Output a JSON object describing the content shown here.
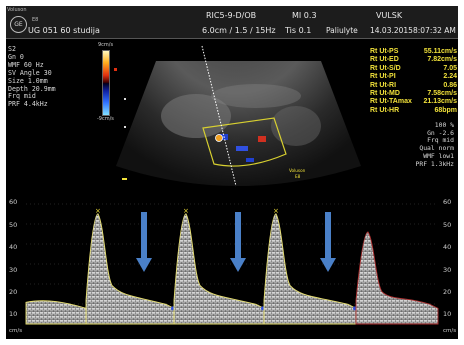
{
  "header": {
    "logo_text": "Voluson",
    "logo_sub": "E8",
    "patient_name": "UG 051 60 studija",
    "probe": "RIC5-9-D/OB",
    "probe_settings": "6.0cm / 1.5 / 15Hz",
    "mi": "MI 0.3",
    "tis": "Tis 0.1",
    "mode": "VULSK",
    "preset": "Paliulyte",
    "date": "14.03.2015",
    "time": "8:07:32 AM"
  },
  "left_params": [
    "S2",
    "Gn  0",
    "WMF 60 Hz",
    "SV Angle 30",
    "Size  1.0mm",
    "Depth 20.9mm",
    "Frq mid",
    "PRF  4.4kHz"
  ],
  "color_bar": {
    "top": "9cm/s",
    "bottom": "-9cm/s"
  },
  "measurements": [
    {
      "label": "Rt Ut-PS",
      "value": "55.11cm/s"
    },
    {
      "label": "Rt Ut-ED",
      "value": "7.82cm/s"
    },
    {
      "label": "Rt Ut-S/D",
      "value": "7.05"
    },
    {
      "label": "Rt Ut-PI",
      "value": "2.24"
    },
    {
      "label": "Rt Ut-RI",
      "value": "0.86"
    },
    {
      "label": "Rt Ut-MD",
      "value": "7.58cm/s"
    },
    {
      "label": "Rt Ut-TAmax",
      "value": "21.13cm/s"
    },
    {
      "label": "Rt Ut-HR",
      "value": "68bpm"
    }
  ],
  "right_params": [
    "100 %",
    "Gn -2.6",
    "Frq mid",
    "Qual norm",
    "WMF low1",
    "PRF 1.3kHz"
  ],
  "probe_mark": {
    "line1": "Voluson",
    "line2": "E8"
  },
  "doppler_scale": {
    "ticks": [
      "60",
      "50",
      "40",
      "30",
      "20",
      "10",
      "cm/s"
    ]
  },
  "doppler_waveform": {
    "peaks_cm_s": [
      55.11,
      55.11,
      55.11,
      46
    ],
    "end_diastolic_cm_s": 7.82
  },
  "colors": {
    "measurement": "#f2e23a",
    "arrow": "#4a80c8",
    "envelope": "#e8e070",
    "envelope_right": "#b03030"
  }
}
